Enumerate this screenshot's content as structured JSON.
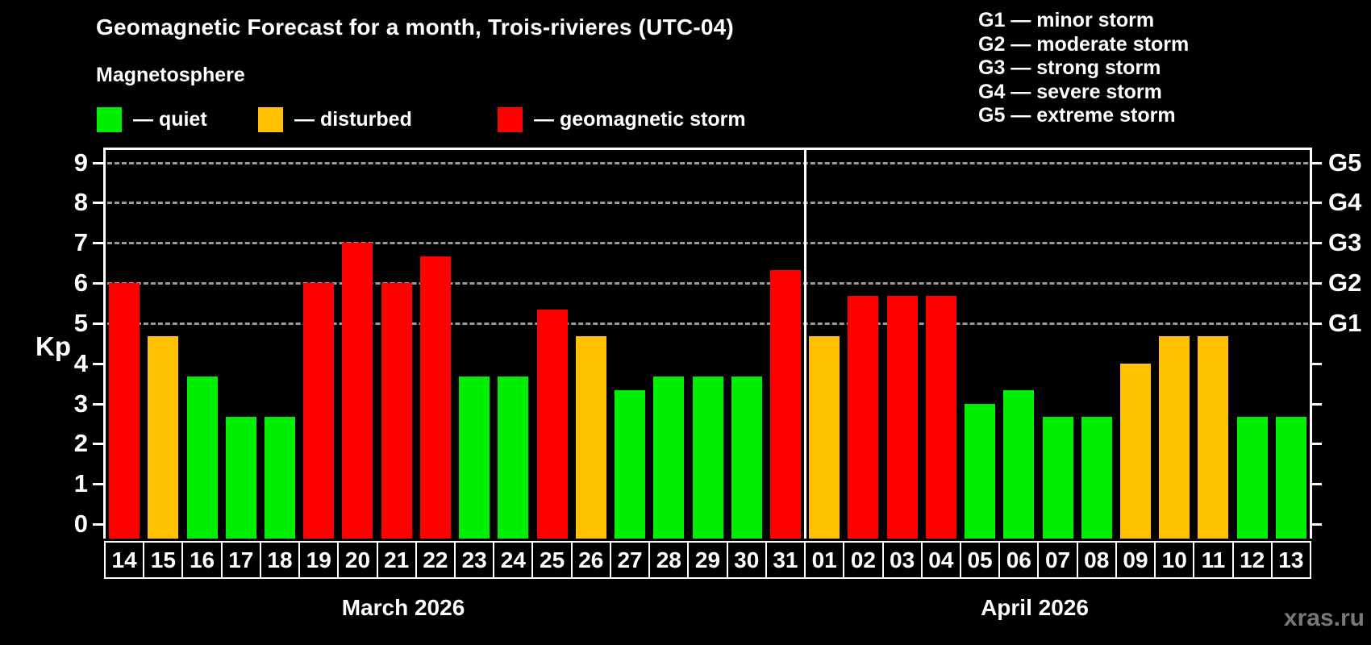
{
  "chart_data": {
    "type": "bar",
    "title": "Geomagnetic Forecast for a month, Trois-rivieres (UTC-04)",
    "subtitle": "Magnetosphere",
    "ylabel": "Kp",
    "ylim": [
      0,
      9
    ],
    "yticks": [
      0,
      1,
      2,
      3,
      4,
      5,
      6,
      7,
      8,
      9
    ],
    "grid": "dashed horizontal lines at Kp 5-9 only",
    "legend_position": "top-left under subtitle",
    "colors": {
      "quiet": "#00ee00",
      "disturbed": "#ffc100",
      "storm": "#ff0000"
    },
    "legend": [
      {
        "status": "quiet",
        "label": "— quiet"
      },
      {
        "status": "disturbed",
        "label": "— disturbed"
      },
      {
        "status": "storm",
        "label": "— geomagnetic storm"
      }
    ],
    "g_scale_legend": [
      "G1 — minor storm",
      "G2 — moderate storm",
      "G3 — strong storm",
      "G4 — severe storm",
      "G5 — extreme storm"
    ],
    "g_levels": [
      {
        "label": "G1",
        "kp": 5
      },
      {
        "label": "G2",
        "kp": 6
      },
      {
        "label": "G3",
        "kp": 7
      },
      {
        "label": "G4",
        "kp": 8
      },
      {
        "label": "G5",
        "kp": 9
      }
    ],
    "months": [
      {
        "label": "March 2026",
        "days": [
          {
            "day": "14",
            "kp": 6,
            "status": "storm"
          },
          {
            "day": "15",
            "kp": 4.67,
            "status": "disturbed"
          },
          {
            "day": "16",
            "kp": 3.67,
            "status": "quiet"
          },
          {
            "day": "17",
            "kp": 2.67,
            "status": "quiet"
          },
          {
            "day": "18",
            "kp": 2.67,
            "status": "quiet"
          },
          {
            "day": "19",
            "kp": 6,
            "status": "storm"
          },
          {
            "day": "20",
            "kp": 7,
            "status": "storm"
          },
          {
            "day": "21",
            "kp": 6,
            "status": "storm"
          },
          {
            "day": "22",
            "kp": 6.67,
            "status": "storm"
          },
          {
            "day": "23",
            "kp": 3.67,
            "status": "quiet"
          },
          {
            "day": "24",
            "kp": 3.67,
            "status": "quiet"
          },
          {
            "day": "25",
            "kp": 5.33,
            "status": "storm"
          },
          {
            "day": "26",
            "kp": 4.67,
            "status": "disturbed"
          },
          {
            "day": "27",
            "kp": 3.33,
            "status": "quiet"
          },
          {
            "day": "28",
            "kp": 3.67,
            "status": "quiet"
          },
          {
            "day": "29",
            "kp": 3.67,
            "status": "quiet"
          },
          {
            "day": "30",
            "kp": 3.67,
            "status": "quiet"
          },
          {
            "day": "31",
            "kp": 6.33,
            "status": "storm"
          }
        ]
      },
      {
        "label": "April 2026",
        "days": [
          {
            "day": "01",
            "kp": 4.67,
            "status": "disturbed"
          },
          {
            "day": "02",
            "kp": 5.67,
            "status": "storm"
          },
          {
            "day": "03",
            "kp": 5.67,
            "status": "storm"
          },
          {
            "day": "04",
            "kp": 5.67,
            "status": "storm"
          },
          {
            "day": "05",
            "kp": 3,
            "status": "quiet"
          },
          {
            "day": "06",
            "kp": 3.33,
            "status": "quiet"
          },
          {
            "day": "07",
            "kp": 2.67,
            "status": "quiet"
          },
          {
            "day": "08",
            "kp": 2.67,
            "status": "quiet"
          },
          {
            "day": "09",
            "kp": 4,
            "status": "disturbed"
          },
          {
            "day": "10",
            "kp": 4.67,
            "status": "disturbed"
          },
          {
            "day": "11",
            "kp": 4.67,
            "status": "disturbed"
          },
          {
            "day": "12",
            "kp": 2.67,
            "status": "quiet"
          },
          {
            "day": "13",
            "kp": 2.67,
            "status": "quiet"
          }
        ]
      }
    ],
    "watermark": "xras.ru"
  }
}
